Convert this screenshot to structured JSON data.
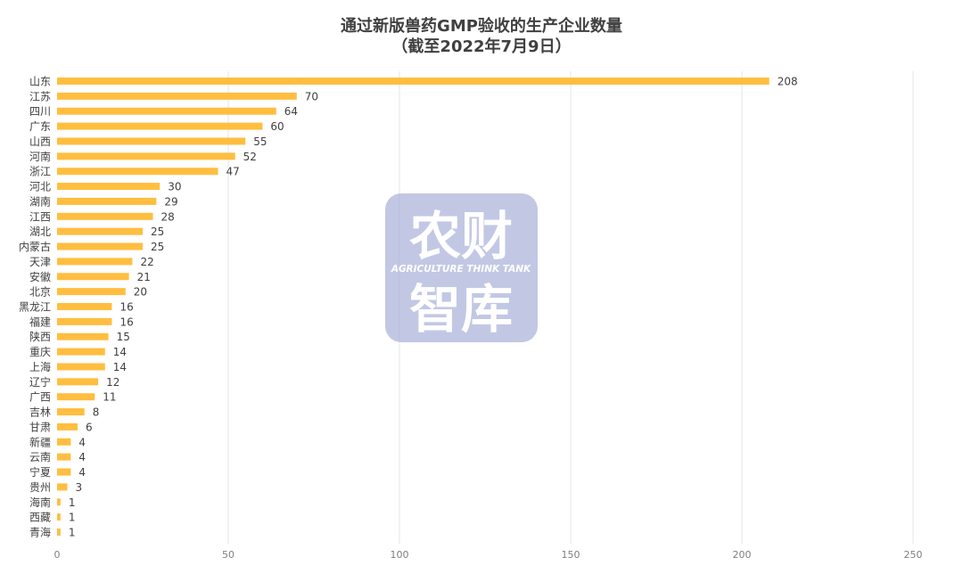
{
  "chart_data": {
    "type": "bar",
    "orientation": "horizontal",
    "title": [
      "通过新版兽药GMP验收的生产企业数量",
      "（截至2022年7月9日）"
    ],
    "xlabel": "",
    "ylabel": "",
    "xlim": [
      0,
      250
    ],
    "x_ticks": [
      0,
      50,
      100,
      150,
      200,
      250
    ],
    "grid": "vertical",
    "data_labels": true,
    "bar_color": "#ffbe40",
    "categories": [
      "山东",
      "江苏",
      "四川",
      "广东",
      "山西",
      "河南",
      "浙江",
      "河北",
      "湖南",
      "江西",
      "湖北",
      "内蒙古",
      "天津",
      "安徽",
      "北京",
      "黑龙江",
      "福建",
      "陕西",
      "重庆",
      "上海",
      "辽宁",
      "广西",
      "吉林",
      "甘肃",
      "新疆",
      "云南",
      "宁夏",
      "贵州",
      "海南",
      "西藏",
      "青海"
    ],
    "values": [
      208,
      70,
      64,
      60,
      55,
      52,
      47,
      30,
      29,
      28,
      25,
      25,
      22,
      21,
      20,
      16,
      16,
      15,
      14,
      14,
      12,
      11,
      8,
      6,
      4,
      4,
      4,
      3,
      1,
      1,
      1
    ]
  },
  "watermark": {
    "line1": "农财",
    "line2": "AGRICULTURE THINK TANK",
    "line3": "智库",
    "color": "#aab3d9"
  }
}
